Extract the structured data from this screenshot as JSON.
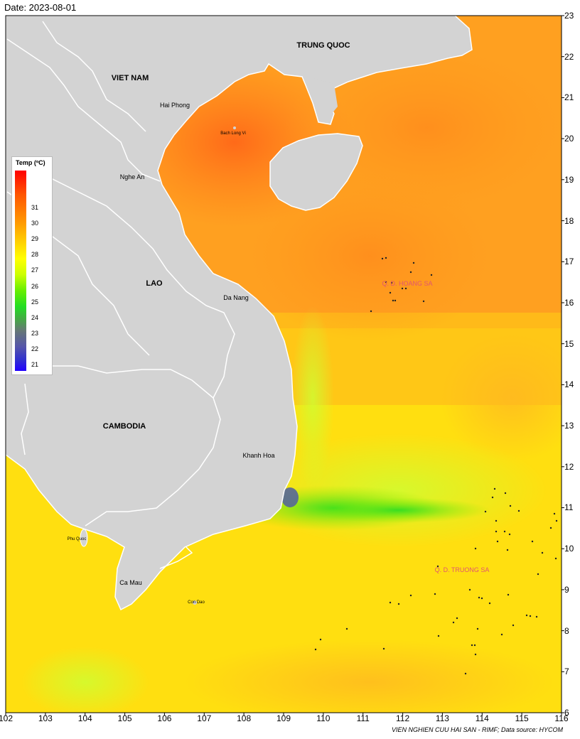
{
  "date_label": "Date: 2023-08-01",
  "credit": "VIEN NGHIEN CUU HAI SAN - RIMF; Data source: HYCOM",
  "x_ticks": [
    "102",
    "103",
    "104",
    "105",
    "106",
    "107",
    "108",
    "109",
    "110",
    "111",
    "112",
    "113",
    "114",
    "115",
    "116"
  ],
  "y_ticks": [
    "23",
    "22",
    "21",
    "20",
    "19",
    "18",
    "17",
    "16",
    "15",
    "14",
    "13",
    "12",
    "11",
    "10",
    "9",
    "8",
    "7",
    "6"
  ],
  "legend": {
    "title": "Temp (ºC)",
    "ticks": [
      "31",
      "30",
      "29",
      "28",
      "27",
      "26",
      "25",
      "24",
      "23",
      "22",
      "21"
    ]
  },
  "labels": {
    "trung_quoc": "TRUNG QUOC",
    "viet_nam": "VIET NAM",
    "lao": "LAO",
    "cambodia": "CAMBODIA",
    "hai_phong": "Hai Phong",
    "bach_long_vi": "Bach Long Vi",
    "nghe_an": "Nghe An",
    "da_nang": "Da Nang",
    "khanh_hoa": "Khanh Hoa",
    "phu_quoc": "Phu Quoc",
    "ca_mau": "Ca Mau",
    "con_dao": "Con Dao",
    "hoang_sa": "Q. D. HOANG SA",
    "truong_sa": "Q. D. TRUONG SA"
  },
  "colors": {
    "land": "#d3d3d3",
    "sea_warm": "#ff6a1a",
    "sea_mid": "#ffa820",
    "sea_cool": "#ffff00",
    "upwelling": "#33dd22",
    "coldest": "#556699"
  }
}
